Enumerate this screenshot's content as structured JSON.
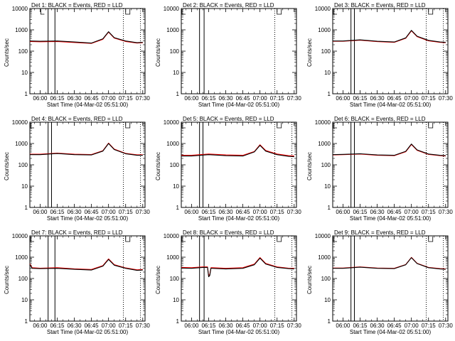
{
  "figure": {
    "ylabel": "Counts/sec",
    "xlabel": "Start Time (04-Mar-02 05:51:00)",
    "xticks": [
      "06:00",
      "06:15",
      "06:30",
      "06:45",
      "07:00",
      "07:15",
      "07:30"
    ],
    "yticks": [
      "1",
      "10",
      "100",
      "1000",
      "10000"
    ],
    "colors": {
      "events": "#000000",
      "lld": "#ff0000",
      "axes": "#000000",
      "background": "#ffffff"
    }
  },
  "chart_data": [
    {
      "type": "line",
      "title": "Det 1: BLACK = Events, RED = LLD",
      "xlabel": "Start Time (04-Mar-02 05:51:00)",
      "ylabel": "Counts/sec",
      "xlim": [
        "05:51",
        "07:32"
      ],
      "ylim": [
        1,
        10000
      ],
      "yscale": "log",
      "grid": false,
      "vlines_solid": [
        "06:07",
        "06:13"
      ],
      "vlines_dotted": [
        "07:13",
        "07:28"
      ],
      "markers": {
        "left": "06:00",
        "right": "07:15"
      },
      "x": [
        "05:51",
        "06:00",
        "06:15",
        "06:30",
        "06:45",
        "06:55",
        "07:00",
        "07:05",
        "07:15",
        "07:25",
        "07:30"
      ],
      "series": [
        {
          "name": "Events",
          "values": [
            300,
            290,
            300,
            270,
            240,
            380,
            820,
            430,
            300,
            250,
            260
          ]
        },
        {
          "name": "LLD",
          "values": [
            285,
            275,
            285,
            255,
            230,
            360,
            780,
            410,
            285,
            240,
            250
          ]
        }
      ]
    },
    {
      "type": "line",
      "title": "Det 2: BLACK = Events, RED = LLD",
      "xlabel": "Start Time (04-Mar-02 05:51:00)",
      "ylabel": "Counts/sec",
      "xlim": [
        "05:51",
        "07:32"
      ],
      "ylim": [
        1,
        10000
      ],
      "yscale": "log",
      "grid": false,
      "vlines_solid": [
        "06:07",
        "06:11"
      ],
      "vlines_dotted": [
        "07:13"
      ],
      "markers": {
        "left": "05:51",
        "right": "07:15"
      },
      "x": [],
      "series": []
    },
    {
      "type": "line",
      "title": "Det 3: BLACK = Events, RED = LLD",
      "xlabel": "Start Time (04-Mar-02 05:51:00)",
      "ylabel": "Counts/sec",
      "xlim": [
        "05:51",
        "07:32"
      ],
      "ylim": [
        1,
        10000
      ],
      "yscale": "log",
      "grid": false,
      "vlines_solid": [
        "06:07",
        "06:10"
      ],
      "vlines_dotted": [
        "07:13",
        "07:28"
      ],
      "markers": {
        "left": "05:51",
        "right": "07:15"
      },
      "x": [
        "05:51",
        "06:00",
        "06:15",
        "06:30",
        "06:45",
        "06:55",
        "07:00",
        "07:05",
        "07:15",
        "07:25",
        "07:30"
      ],
      "series": [
        {
          "name": "Events",
          "values": [
            300,
            300,
            340,
            290,
            270,
            420,
            950,
            500,
            320,
            270,
            260
          ]
        },
        {
          "name": "LLD",
          "values": [
            290,
            290,
            325,
            280,
            260,
            400,
            900,
            480,
            305,
            260,
            250
          ]
        }
      ]
    },
    {
      "type": "line",
      "title": "Det 4: BLACK = Events, RED = LLD",
      "xlabel": "Start Time (04-Mar-02 05:51:00)",
      "ylabel": "Counts/sec",
      "xlim": [
        "05:51",
        "07:32"
      ],
      "ylim": [
        1,
        10000
      ],
      "yscale": "log",
      "grid": false,
      "vlines_solid": [
        "06:07",
        "06:10"
      ],
      "vlines_dotted": [
        "07:13",
        "07:28"
      ],
      "markers": {
        "left": "05:51",
        "right": "07:15"
      },
      "x": [
        "05:51",
        "06:00",
        "06:15",
        "06:30",
        "06:45",
        "06:55",
        "07:00",
        "07:05",
        "07:15",
        "07:25",
        "07:30"
      ],
      "series": [
        {
          "name": "Events",
          "values": [
            300,
            300,
            340,
            300,
            290,
            440,
            1000,
            520,
            330,
            280,
            280
          ]
        },
        {
          "name": "LLD",
          "values": [
            315,
            315,
            355,
            315,
            305,
            460,
            1050,
            545,
            345,
            295,
            295
          ]
        }
      ]
    },
    {
      "type": "line",
      "title": "Det 5: BLACK = Events, RED = LLD",
      "xlabel": "Start Time (04-Mar-02 05:51:00)",
      "ylabel": "Counts/sec",
      "xlim": [
        "05:51",
        "07:32"
      ],
      "ylim": [
        1,
        10000
      ],
      "yscale": "log",
      "grid": false,
      "vlines_solid": [
        "06:07",
        "06:10"
      ],
      "vlines_dotted": [
        "07:13",
        "07:28"
      ],
      "markers": {
        "left": "05:51",
        "right": "07:15"
      },
      "x": [
        "05:51",
        "06:00",
        "06:15",
        "06:30",
        "06:45",
        "06:55",
        "07:00",
        "07:05",
        "07:15",
        "07:25",
        "07:30"
      ],
      "series": [
        {
          "name": "Events",
          "values": [
            260,
            260,
            300,
            270,
            260,
            400,
            820,
            440,
            300,
            250,
            240
          ]
        },
        {
          "name": "LLD",
          "values": [
            280,
            280,
            320,
            290,
            280,
            420,
            880,
            470,
            320,
            270,
            260
          ]
        }
      ]
    },
    {
      "type": "line",
      "title": "Det 6: BLACK = Events, RED = LLD",
      "xlabel": "Start Time (04-Mar-02 05:51:00)",
      "ylabel": "Counts/sec",
      "xlim": [
        "05:51",
        "07:32"
      ],
      "ylim": [
        1,
        10000
      ],
      "yscale": "log",
      "grid": false,
      "vlines_solid": [
        "06:07",
        "06:10"
      ],
      "vlines_dotted": [
        "07:13",
        "07:28"
      ],
      "markers": {
        "left": "05:51",
        "right": "07:15"
      },
      "x": [
        "05:51",
        "06:00",
        "06:15",
        "06:30",
        "06:45",
        "06:55",
        "07:00",
        "07:05",
        "07:15",
        "07:25",
        "07:30"
      ],
      "series": [
        {
          "name": "Events",
          "values": [
            300,
            310,
            330,
            290,
            280,
            430,
            950,
            500,
            320,
            280,
            270
          ]
        },
        {
          "name": "LLD",
          "values": [
            290,
            300,
            320,
            280,
            270,
            410,
            900,
            480,
            310,
            270,
            260
          ]
        }
      ]
    },
    {
      "type": "line",
      "title": "Det 7: BLACK = Events, RED = LLD",
      "xlabel": "Start Time (04-Mar-02 05:51:00)",
      "ylabel": "Counts/sec",
      "xlim": [
        "05:51",
        "07:32"
      ],
      "ylim": [
        1,
        10000
      ],
      "yscale": "log",
      "grid": false,
      "vlines_solid": [
        "06:07",
        "06:13"
      ],
      "vlines_dotted": [
        "07:13",
        "07:28"
      ],
      "markers": {
        "left": "05:51",
        "right": "07:15"
      },
      "x": [
        "05:51",
        "05:53",
        "06:00",
        "06:15",
        "06:30",
        "06:45",
        "06:55",
        "07:00",
        "07:05",
        "07:15",
        "07:25",
        "07:30"
      ],
      "series": [
        {
          "name": "Events",
          "values": [
            450,
            300,
            290,
            300,
            270,
            250,
            380,
            780,
            420,
            300,
            240,
            250
          ]
        },
        {
          "name": "LLD",
          "values": [
            480,
            320,
            305,
            320,
            285,
            265,
            400,
            830,
            445,
            315,
            255,
            265
          ]
        }
      ]
    },
    {
      "type": "line",
      "title": "Det 8: BLACK = Events, RED = LLD",
      "xlabel": "Start Time (04-Mar-02 05:51:00)",
      "ylabel": "Counts/sec",
      "xlim": [
        "05:51",
        "07:32"
      ],
      "ylim": [
        1,
        10000
      ],
      "yscale": "log",
      "grid": false,
      "vlines_solid": [
        "06:07",
        "06:11"
      ],
      "vlines_dotted": [
        "07:13",
        "07:28"
      ],
      "markers": {
        "left": "05:51",
        "right": "07:15"
      },
      "x": [
        "05:51",
        "06:00",
        "06:10",
        "06:14",
        "06:15",
        "06:16",
        "06:17",
        "06:18",
        "06:30",
        "06:45",
        "06:55",
        "07:00",
        "07:05",
        "07:15",
        "07:25",
        "07:30"
      ],
      "series": [
        {
          "name": "Events",
          "values": [
            310,
            300,
            330,
            330,
            120,
            140,
            300,
            300,
            280,
            300,
            440,
            900,
            480,
            330,
            290,
            280
          ]
        },
        {
          "name": "LLD",
          "values": [
            330,
            320,
            350,
            350,
            135,
            155,
            320,
            320,
            300,
            320,
            470,
            960,
            510,
            350,
            305,
            300
          ]
        }
      ]
    },
    {
      "type": "line",
      "title": "Det 9: BLACK = Events, RED = LLD",
      "xlabel": "Start Time (04-Mar-02 05:51:00)",
      "ylabel": "Counts/sec",
      "xlim": [
        "05:51",
        "07:32"
      ],
      "ylim": [
        1,
        10000
      ],
      "yscale": "log",
      "grid": false,
      "vlines_solid": [
        "06:07",
        "06:10"
      ],
      "vlines_dotted": [
        "07:13",
        "07:28"
      ],
      "markers": {
        "left": "05:51",
        "right": "07:15"
      },
      "x": [
        "05:51",
        "06:00",
        "06:15",
        "06:30",
        "06:45",
        "06:55",
        "07:00",
        "07:05",
        "07:15",
        "07:25",
        "07:30"
      ],
      "series": [
        {
          "name": "Events",
          "values": [
            300,
            300,
            340,
            300,
            290,
            440,
            950,
            500,
            320,
            280,
            270
          ]
        },
        {
          "name": "LLD",
          "values": [
            310,
            310,
            350,
            310,
            300,
            450,
            980,
            515,
            330,
            290,
            280
          ]
        }
      ]
    }
  ]
}
